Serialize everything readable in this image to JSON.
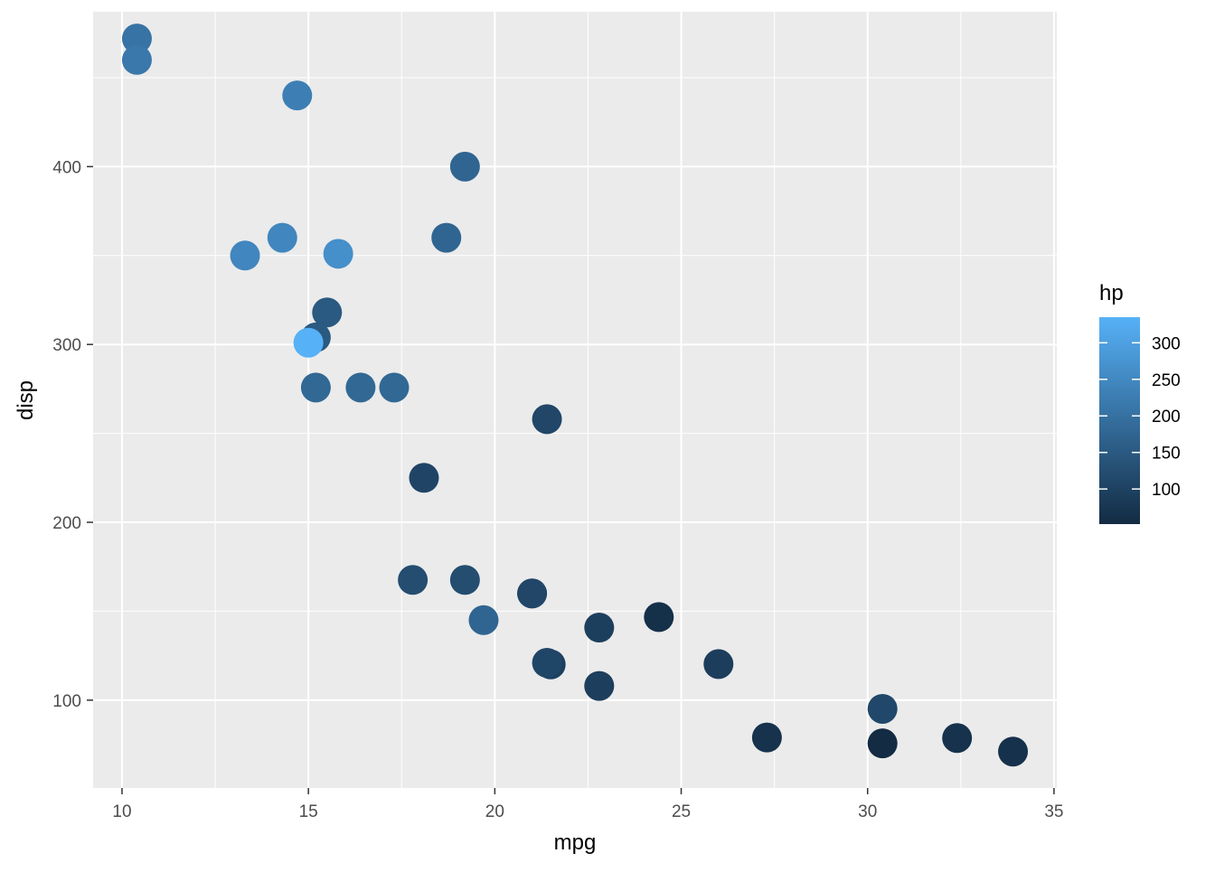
{
  "chart_data": {
    "type": "scatter",
    "xlabel": "mpg",
    "ylabel": "disp",
    "xlim": [
      9.225,
      35.075
    ],
    "ylim": [
      50.63,
      487.07
    ],
    "x_ticks": [
      10,
      15,
      20,
      25,
      30,
      35
    ],
    "y_ticks": [
      100,
      200,
      300,
      400
    ],
    "grid": true,
    "legend": {
      "title": "hp",
      "position": "right",
      "ticks": [
        100,
        150,
        200,
        250,
        300
      ],
      "range": [
        52,
        335
      ],
      "color_low": "#132b43",
      "color_high": "#56b1f7"
    },
    "points": [
      {
        "x": 21.0,
        "y": 160,
        "hp": 110
      },
      {
        "x": 21.0,
        "y": 160,
        "hp": 110
      },
      {
        "x": 22.8,
        "y": 108,
        "hp": 93
      },
      {
        "x": 21.4,
        "y": 258,
        "hp": 110
      },
      {
        "x": 18.7,
        "y": 360,
        "hp": 175
      },
      {
        "x": 18.1,
        "y": 225,
        "hp": 105
      },
      {
        "x": 14.3,
        "y": 360,
        "hp": 245
      },
      {
        "x": 24.4,
        "y": 146.7,
        "hp": 62
      },
      {
        "x": 22.8,
        "y": 140.8,
        "hp": 95
      },
      {
        "x": 19.2,
        "y": 167.6,
        "hp": 123
      },
      {
        "x": 17.8,
        "y": 167.6,
        "hp": 123
      },
      {
        "x": 16.4,
        "y": 275.8,
        "hp": 180
      },
      {
        "x": 17.3,
        "y": 275.8,
        "hp": 180
      },
      {
        "x": 15.2,
        "y": 275.8,
        "hp": 180
      },
      {
        "x": 10.4,
        "y": 472,
        "hp": 205
      },
      {
        "x": 10.4,
        "y": 460,
        "hp": 215
      },
      {
        "x": 14.7,
        "y": 440,
        "hp": 230
      },
      {
        "x": 32.4,
        "y": 78.7,
        "hp": 66
      },
      {
        "x": 30.4,
        "y": 75.7,
        "hp": 52
      },
      {
        "x": 33.9,
        "y": 71.1,
        "hp": 65
      },
      {
        "x": 21.5,
        "y": 120.1,
        "hp": 97
      },
      {
        "x": 15.5,
        "y": 318,
        "hp": 150
      },
      {
        "x": 15.2,
        "y": 304,
        "hp": 150
      },
      {
        "x": 13.3,
        "y": 350,
        "hp": 245
      },
      {
        "x": 19.2,
        "y": 400,
        "hp": 175
      },
      {
        "x": 27.3,
        "y": 79,
        "hp": 66
      },
      {
        "x": 26.0,
        "y": 120.3,
        "hp": 91
      },
      {
        "x": 30.4,
        "y": 95.1,
        "hp": 113
      },
      {
        "x": 15.8,
        "y": 351,
        "hp": 264
      },
      {
        "x": 19.7,
        "y": 145,
        "hp": 175
      },
      {
        "x": 15.0,
        "y": 301,
        "hp": 335
      },
      {
        "x": 21.4,
        "y": 121,
        "hp": 109
      }
    ]
  }
}
